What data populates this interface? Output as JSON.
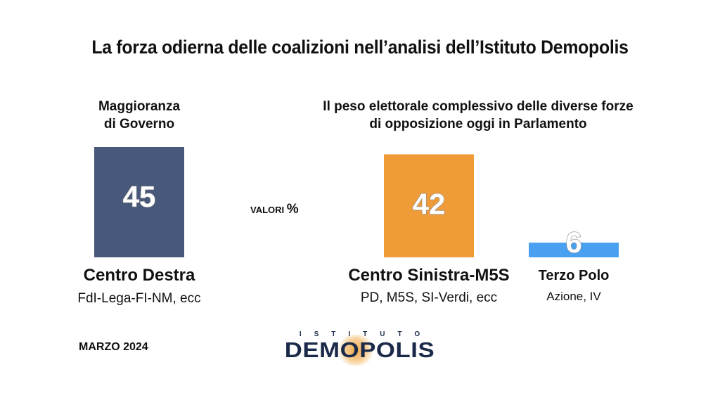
{
  "title": "La forza odierna delle coalizioni nell’analisi dell’Istituto Demopolis",
  "heading_left": [
    "Maggioranza",
    "di Governo"
  ],
  "heading_right": [
    "Il peso elettorale complessivo delle diverse forze",
    "di opposizione oggi in Parlamento"
  ],
  "unit_label": "VALORI",
  "unit_symbol": "%",
  "date": "MARZO 2024",
  "logo": {
    "top": "ISTITUTO",
    "main": "DEMOPOLIS"
  },
  "colors": {
    "centro_destra": "#47587a",
    "centro_sinistra": "#ef9b38",
    "terzo_polo": "#4aa0f0"
  },
  "chart_data": {
    "type": "bar",
    "title": "La forza odierna delle coalizioni nell’analisi dell’Istituto Demopolis",
    "unit": "%",
    "categories": [
      "Centro Destra",
      "Centro Sinistra-M5S",
      "Terzo Polo"
    ],
    "subtitles": [
      "FdI-Lega-FI-NM, ecc",
      "PD, M5S, SI-Verdi, ecc",
      "Azione, IV"
    ],
    "values": [
      45,
      42,
      6
    ],
    "value_labels": [
      "45",
      "42",
      "6"
    ],
    "groups": [
      "Maggioranza di Governo",
      "opposizione",
      "opposizione"
    ],
    "ylim": [
      0,
      45
    ],
    "grid": false,
    "legend": false
  }
}
